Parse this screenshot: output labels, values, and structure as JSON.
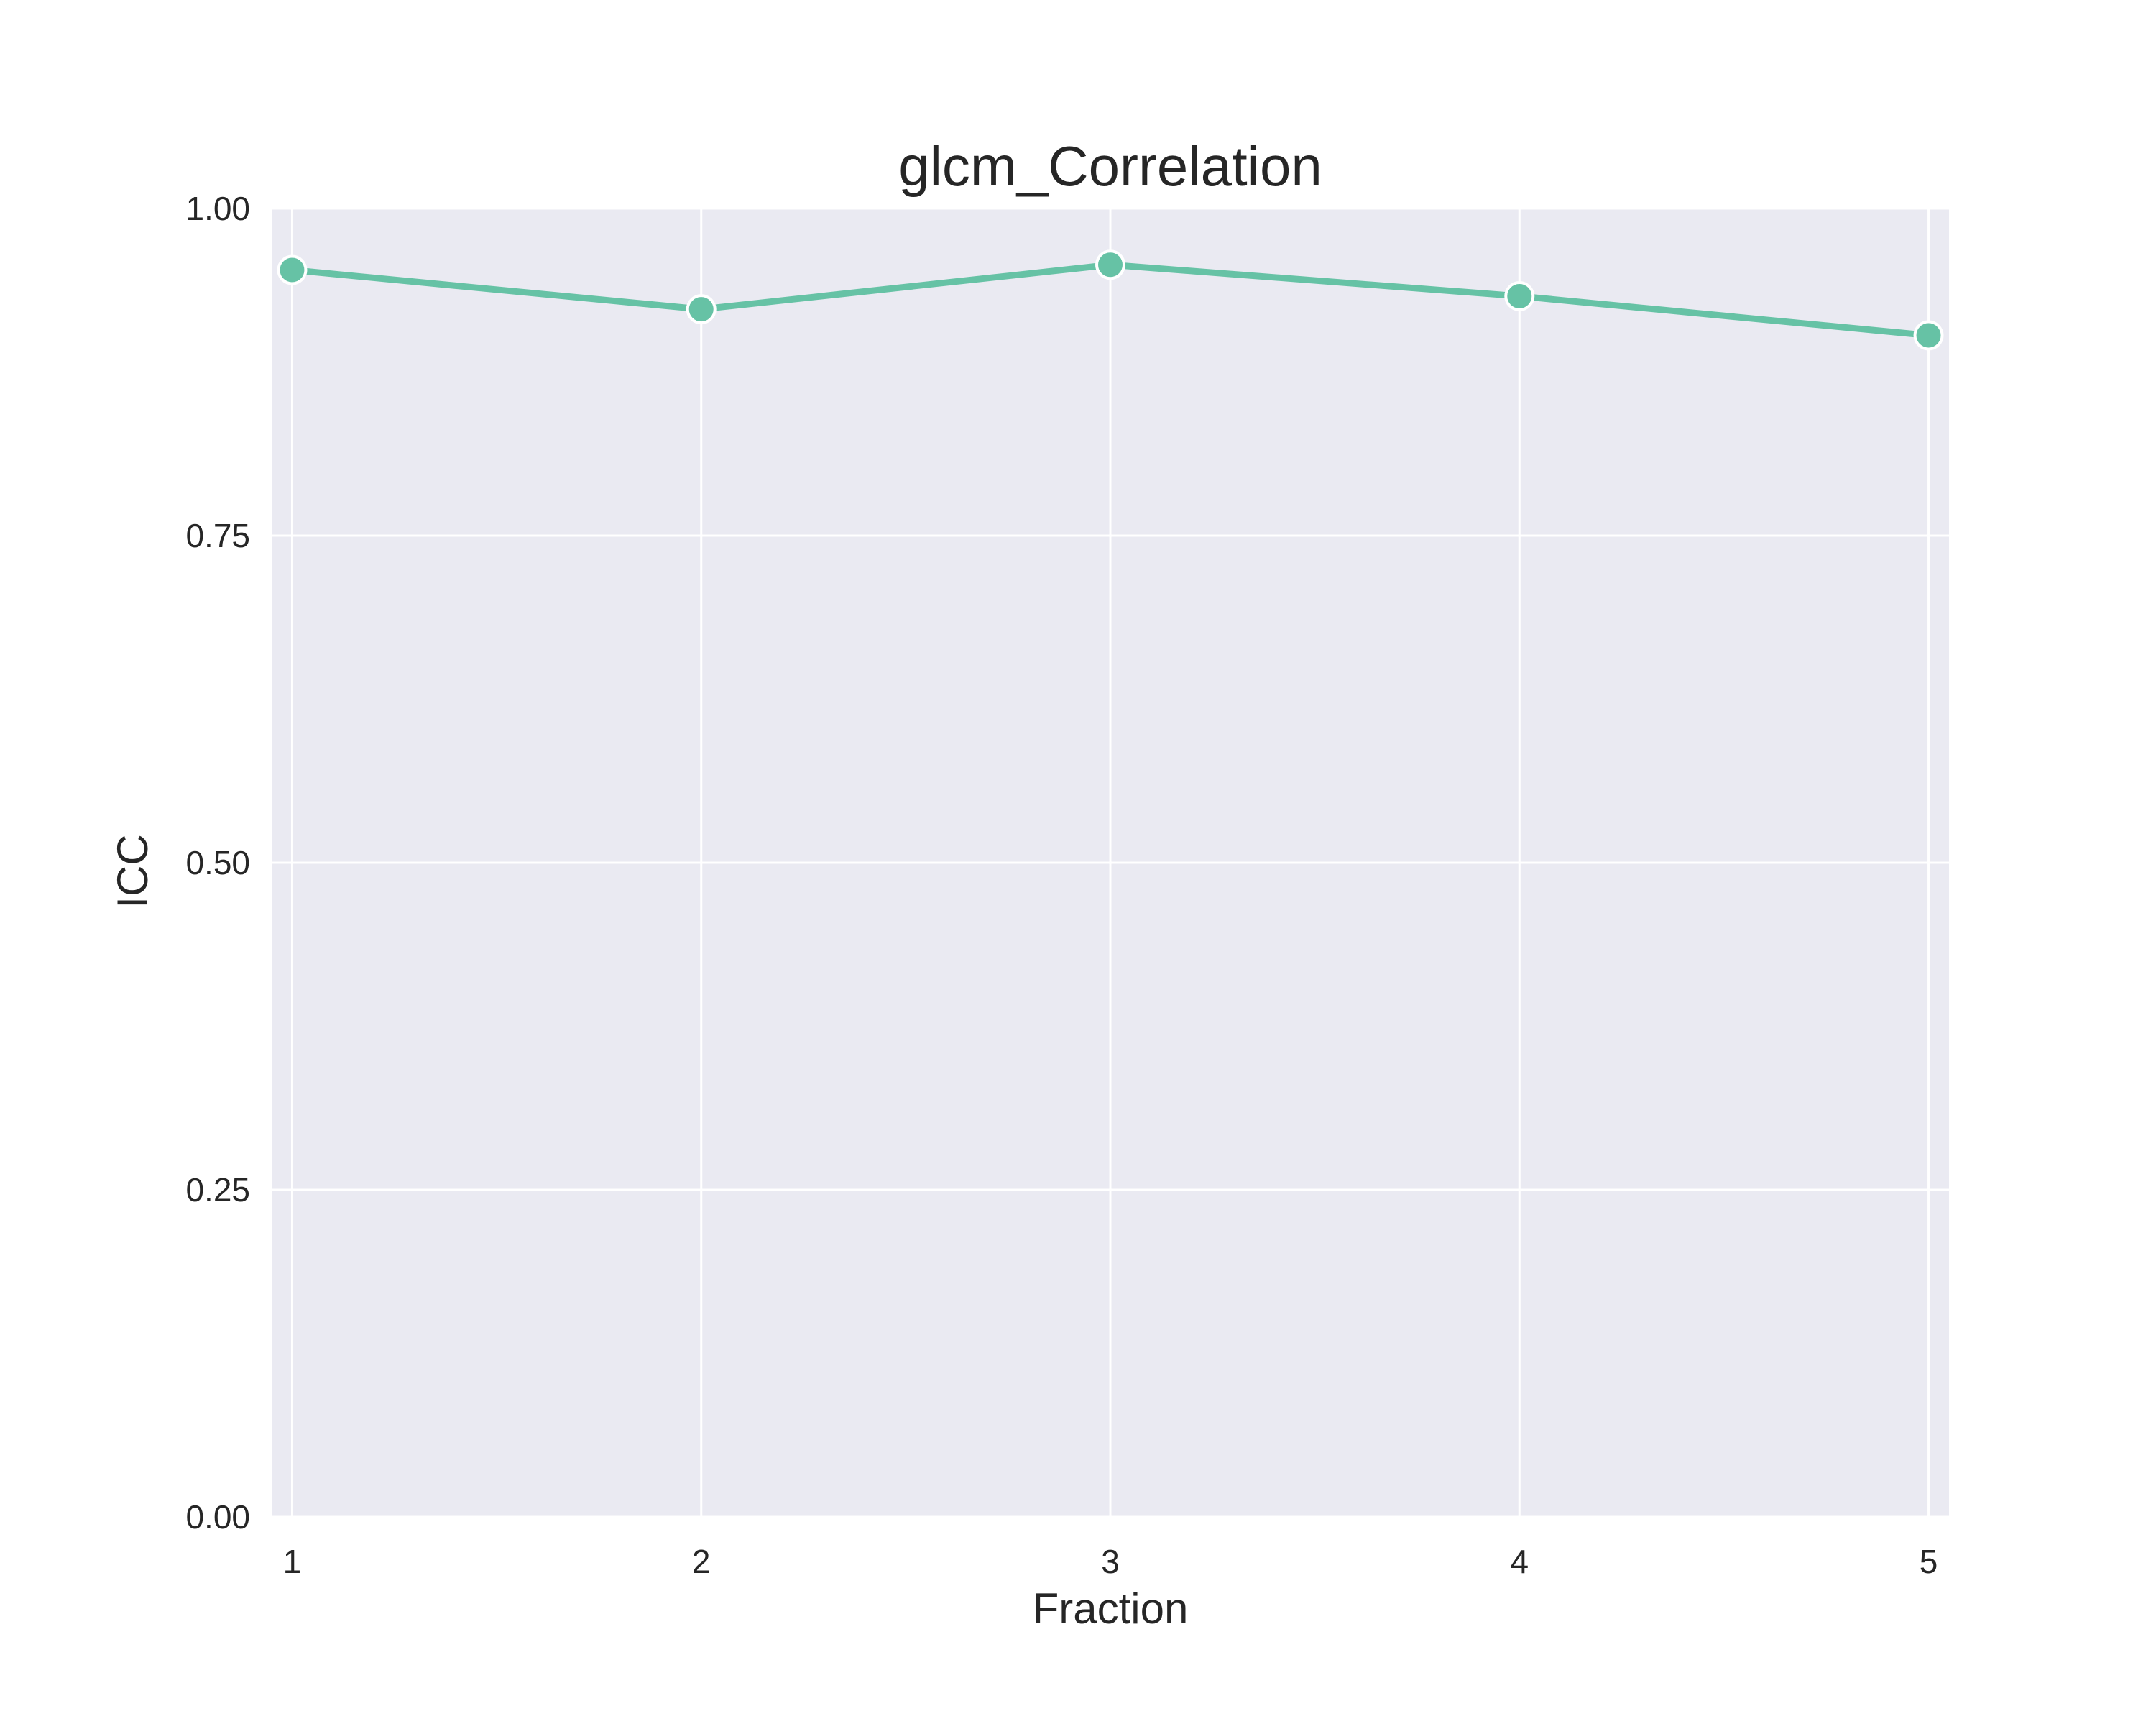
{
  "chart_data": {
    "type": "line",
    "title": "glcm_Correlation",
    "xlabel": "Fraction",
    "ylabel": "ICC",
    "x": [
      1,
      2,
      3,
      4,
      5
    ],
    "xticks": [
      "1",
      "2",
      "3",
      "4",
      "5"
    ],
    "yticks": [
      "0.00",
      "0.25",
      "0.50",
      "0.75",
      "1.00"
    ],
    "ytick_values": [
      0,
      0.25,
      0.5,
      0.75,
      1.0
    ],
    "xlim": [
      0.95,
      5.05
    ],
    "ylim": [
      0,
      1.0
    ],
    "grid": true,
    "series": [
      {
        "values": [
          0.953,
          0.923,
          0.957,
          0.933,
          0.903
        ]
      }
    ]
  },
  "colors": {
    "background": "#EAEAF2",
    "grid": "#FFFFFF",
    "line": "#66C2A5",
    "marker_edge": "#FFFFFF",
    "text": "#262626"
  }
}
